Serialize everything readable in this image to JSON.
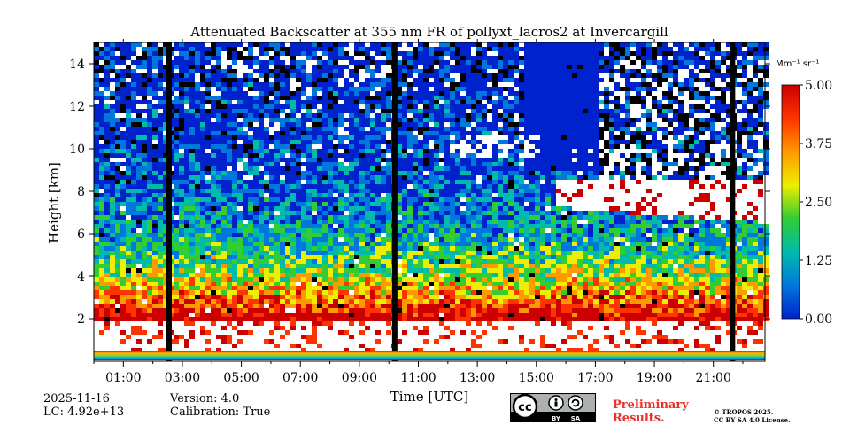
{
  "chart_data": {
    "type": "heatmap",
    "title": "Attenuated Backscatter at 355 nm FR of pollyxt_lacros2 at Invercargill",
    "xlabel": "Time [UTC]",
    "ylabel": "Height [km]",
    "xlim": [
      0,
      22.75
    ],
    "ylim": [
      0,
      15
    ],
    "x_ticks": [
      "01:00",
      "03:00",
      "05:00",
      "07:00",
      "09:00",
      "11:00",
      "13:00",
      "15:00",
      "17:00",
      "19:00",
      "21:00"
    ],
    "x_tick_hours": [
      1,
      3,
      5,
      7,
      9,
      11,
      13,
      15,
      17,
      19,
      21
    ],
    "y_ticks": [
      "2",
      "4",
      "6",
      "8",
      "10",
      "12",
      "14"
    ],
    "y_tick_values": [
      2,
      4,
      6,
      8,
      10,
      12,
      14
    ],
    "colorbar": {
      "unit": "Mm⁻¹ sr⁻¹",
      "min": 0,
      "max": 5,
      "ticks": [
        "0.00",
        "1.25",
        "2.50",
        "3.75",
        "5.00"
      ],
      "tick_values": [
        0,
        1.25,
        2.5,
        3.75,
        5
      ],
      "colors": [
        "#0022cc",
        "#0077dd",
        "#00bbaa",
        "#33cc33",
        "#eeee00",
        "#ff9900",
        "#ff3300",
        "#cc0000"
      ]
    },
    "data_gaps_hours": [
      2.55,
      10.2,
      21.65
    ],
    "features": [
      {
        "name": "boundary layer",
        "height_km": [
          0.5,
          2.2
        ],
        "value": "high"
      },
      {
        "name": "cloud layer",
        "start_hour": 15.5,
        "end_hour": 22.75,
        "height_km": [
          5.5,
          9.0
        ]
      },
      {
        "name": "thin cirrus",
        "start_hour": 12.0,
        "end_hour": 15.0,
        "height_km": [
          9.5,
          11.0
        ]
      }
    ]
  },
  "info": {
    "date": "2025-11-16",
    "lc": "LC: 4.92e+13",
    "version": "Version: 4.0",
    "calibration": "Calibration: True"
  },
  "badge": {
    "by": "BY",
    "sa": "SA"
  },
  "preliminary": [
    "Preliminary",
    "Results."
  ],
  "license": [
    "© TROPOS 2025.",
    "CC BY SA 4.0 License."
  ]
}
